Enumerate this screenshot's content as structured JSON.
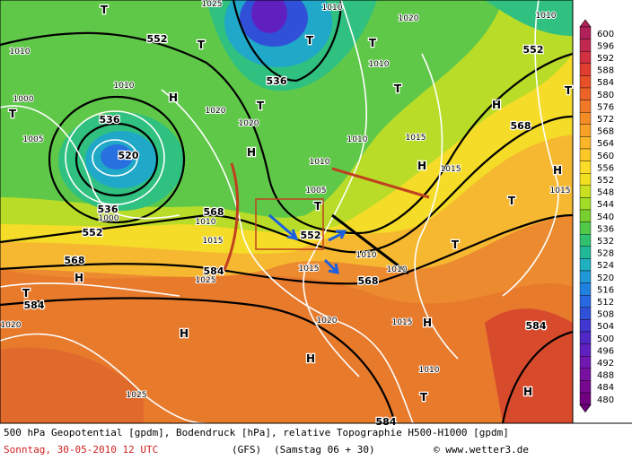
{
  "footer": {
    "line1": "500 hPa Geopotential [gpdm], Bodendruck [hPa], relative Topographie H500-H1000 [gpdm]",
    "date": "Sonntag, 30-05-2010  12 UTC",
    "model": "(GFS)",
    "run": "(Samstag 06 + 30)",
    "copyright": "© www.wetter3.de"
  },
  "colorbar": {
    "values": [
      600,
      596,
      592,
      588,
      584,
      580,
      576,
      572,
      568,
      564,
      560,
      556,
      552,
      548,
      544,
      540,
      536,
      532,
      528,
      524,
      520,
      516,
      512,
      508,
      504,
      500,
      496,
      492,
      488,
      484,
      480
    ],
    "colors": [
      "#b0205a",
      "#c02850",
      "#d03040",
      "#e03c30",
      "#e85028",
      "#ec6428",
      "#f07828",
      "#f48c28",
      "#f8a028",
      "#fcb428",
      "#fcc828",
      "#fcdc28",
      "#f0e020",
      "#c8e020",
      "#a0dc28",
      "#78d030",
      "#50c848",
      "#30c070",
      "#20b898",
      "#20b0c0",
      "#2098d8",
      "#2080e0",
      "#2868e0",
      "#3050d8",
      "#4038d0",
      "#5028c8",
      "#6020c0",
      "#7018b0",
      "#7810a0",
      "#780890",
      "#700080"
    ]
  },
  "map": {
    "geopotential": [
      552,
      536,
      536,
      520,
      536,
      552,
      568,
      552,
      568,
      584,
      584,
      568,
      552,
      568,
      584,
      584
    ],
    "pressure": [
      1025,
      1010,
      1020,
      1010,
      1010,
      1010,
      1000,
      1020,
      1010,
      1020,
      1005,
      1010,
      1015,
      1010,
      1005,
      1015,
      1015,
      1010,
      1015,
      1025,
      1015,
      1010,
      1010,
      1020,
      1015,
      1010,
      1020,
      1025,
      1000
    ],
    "centers": [
      "T",
      "T",
      "T",
      "T",
      "T",
      "T",
      "H",
      "H",
      "H",
      "H",
      "H",
      "T",
      "T",
      "H",
      "T",
      "H",
      "H",
      "H",
      "T",
      "H",
      "T",
      "T",
      "T"
    ]
  }
}
